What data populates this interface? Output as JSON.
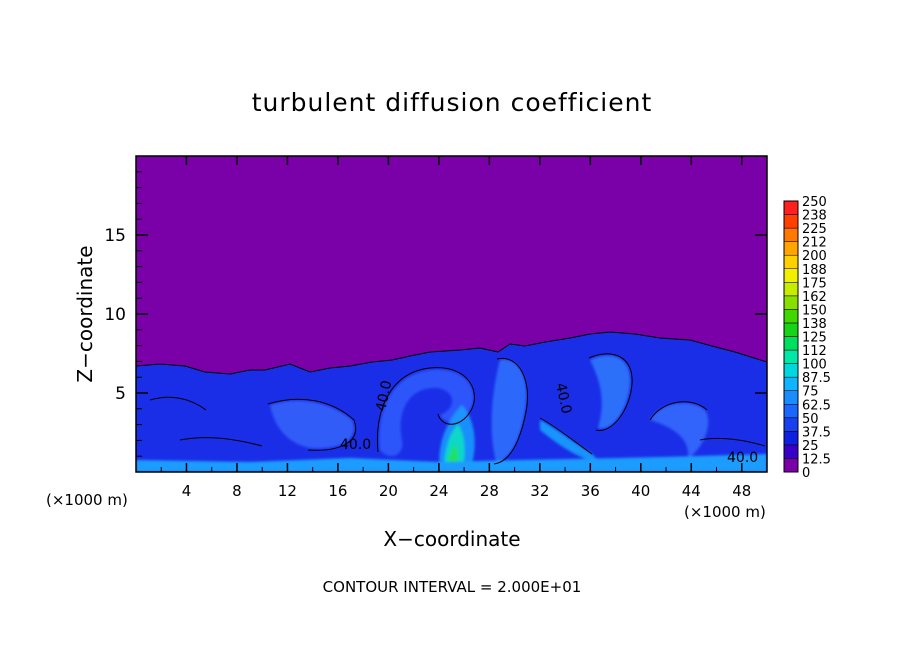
{
  "chart_data": {
    "type": "heatmap",
    "title": "turbulent diffusion coefficient",
    "xlabel": "X−coordinate",
    "ylabel": "Z−coordinate",
    "x_unit_left": "(×1000 m)",
    "x_unit_right": "(×1000 m)",
    "footer": "CONTOUR INTERVAL = 2.000E+01",
    "xlim": [
      0,
      50
    ],
    "ylim": [
      0,
      20
    ],
    "x_ticks": [
      "4",
      "8",
      "12",
      "16",
      "20",
      "24",
      "28",
      "32",
      "36",
      "40",
      "44",
      "48"
    ],
    "y_ticks": [
      "5",
      "10",
      "15"
    ],
    "colorbar": {
      "labels": [
        "0",
        "12.5",
        "25",
        "37.5",
        "50",
        "62.5",
        "75",
        "87.5",
        "100",
        "112",
        "125",
        "138",
        "150",
        "162",
        "175",
        "188",
        "200",
        "212",
        "225",
        "238",
        "250"
      ],
      "colors": [
        "#7a00a8",
        "#3a00c8",
        "#1020e0",
        "#1840f0",
        "#1a66ff",
        "#1a8cff",
        "#10b4ff",
        "#00d8e0",
        "#00e8a8",
        "#00e060",
        "#18d418",
        "#40d800",
        "#88e000",
        "#c8ec00",
        "#f0f000",
        "#ffd000",
        "#ffa400",
        "#ff7800",
        "#ff4000",
        "#ff2020",
        "#ff7070"
      ]
    },
    "contour_labels": [
      "40.0",
      "40.0",
      "40.0",
      "40.0"
    ],
    "background_value": 0,
    "turbulent_layer_top_approx": [
      6.5,
      6.8,
      6.0,
      6.4,
      7.5,
      8.0,
      7.0,
      8.2,
      8.8,
      8.5,
      8.0,
      6.9
    ],
    "turbulent_layer_top_x": [
      0,
      4,
      8,
      12,
      16,
      20,
      24,
      28,
      32,
      36,
      40,
      50
    ]
  }
}
